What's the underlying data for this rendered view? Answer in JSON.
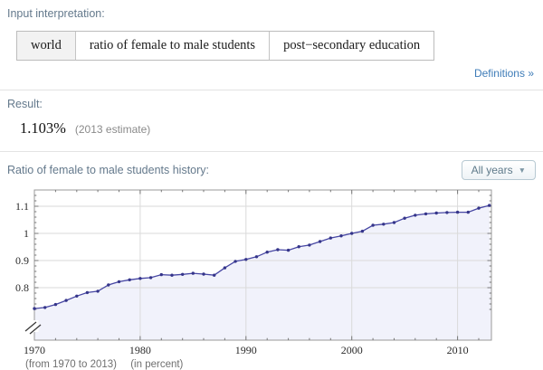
{
  "input_interpretation": {
    "heading": "Input interpretation:",
    "cells": [
      "world",
      "ratio of female to male students",
      "post−secondary education"
    ],
    "definitions_link": "Definitions »"
  },
  "result": {
    "heading": "Result:",
    "value": "1.103%",
    "note": "(2013 estimate)"
  },
  "history": {
    "heading": "Ratio of female to male students history:",
    "dropdown_label": "All years",
    "dropdown_arrow": "▼",
    "caption_range": "(from 1970 to 2013)",
    "caption_unit": "(in percent)"
  },
  "chart_data": {
    "type": "area",
    "title": "Ratio of female to male students history",
    "x": [
      1970,
      1971,
      1972,
      1973,
      1974,
      1975,
      1976,
      1977,
      1978,
      1979,
      1980,
      1981,
      1982,
      1983,
      1984,
      1985,
      1986,
      1987,
      1988,
      1989,
      1990,
      1991,
      1992,
      1993,
      1994,
      1995,
      1996,
      1997,
      1998,
      1999,
      2000,
      2001,
      2002,
      2003,
      2004,
      2005,
      2006,
      2007,
      2008,
      2009,
      2010,
      2011,
      2012,
      2013
    ],
    "values": [
      0.723,
      0.727,
      0.738,
      0.753,
      0.769,
      0.782,
      0.787,
      0.81,
      0.822,
      0.829,
      0.834,
      0.837,
      0.848,
      0.846,
      0.849,
      0.853,
      0.85,
      0.846,
      0.873,
      0.897,
      0.904,
      0.914,
      0.931,
      0.94,
      0.938,
      0.951,
      0.957,
      0.97,
      0.983,
      0.991,
      1.0,
      1.008,
      1.03,
      1.034,
      1.04,
      1.056,
      1.067,
      1.072,
      1.075,
      1.077,
      1.078,
      1.078,
      1.093,
      1.103
    ],
    "xlabel": "",
    "ylabel": "",
    "xlim": [
      1970,
      2013.2
    ],
    "ylim_display": [
      0.705,
      1.155
    ],
    "x_tick_labels": [
      1970,
      1980,
      1990,
      2000,
      2010
    ],
    "y_ticks": [
      0.8,
      0.9,
      1.0,
      1.1
    ],
    "y_tick_labels": [
      "0.8",
      "0.9",
      "1",
      "1.1"
    ],
    "grid": true,
    "legend": "none",
    "axis_break": true,
    "line_color": "#4646a3",
    "dot_color": "#35358a",
    "fill_color": "#f1f2fb",
    "grid_color": "#dadada",
    "frame_color": "#9a9a9a",
    "tick_color": "#777777",
    "label_color": "#2a2a2a"
  }
}
